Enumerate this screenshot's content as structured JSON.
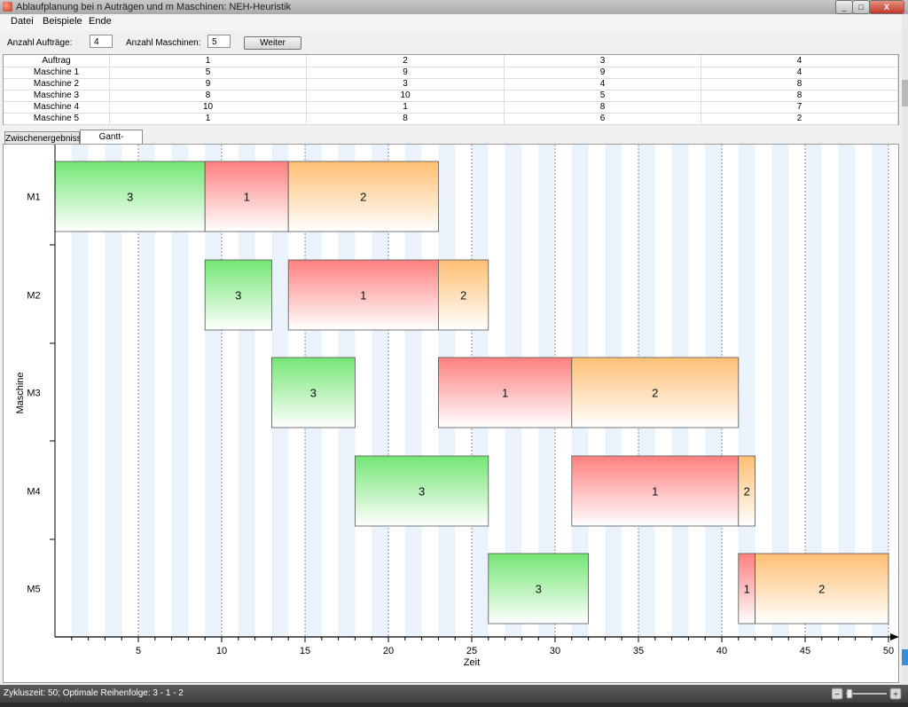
{
  "window": {
    "title": "Ablaufplanung bei n Auträgen und m Maschinen: NEH-Heuristik",
    "btn_min": "_",
    "btn_max": "□",
    "btn_close": "X"
  },
  "menu": {
    "items": [
      "Datei",
      "Beispiele",
      "Ende"
    ]
  },
  "params": {
    "orders_label": "Anzahl Aufträge:",
    "orders_value": "4",
    "machines_label": "Anzahl Maschinen:",
    "machines_value": "5",
    "next_button": "Weiter"
  },
  "table": {
    "headers": [
      "Auftrag",
      "1",
      "2",
      "3",
      "4"
    ],
    "rows": [
      [
        "Maschine 1",
        "5",
        "9",
        "9",
        "4"
      ],
      [
        "Maschine 2",
        "9",
        "3",
        "4",
        "8"
      ],
      [
        "Maschine 3",
        "8",
        "10",
        "5",
        "8"
      ],
      [
        "Maschine 4",
        "10",
        "1",
        "8",
        "7"
      ],
      [
        "Maschine 5",
        "1",
        "8",
        "6",
        "2"
      ]
    ]
  },
  "tabs": [
    "Zwischenergebnisse",
    "Gantt-Diagramm"
  ],
  "active_tab": 1,
  "chart_data": {
    "type": "gantt",
    "xlabel": "Zeit",
    "ylabel": "Maschine",
    "xlim": [
      0,
      50
    ],
    "xticks": [
      5,
      10,
      15,
      20,
      25,
      30,
      35,
      40,
      45,
      50
    ],
    "machines": [
      "M1",
      "M2",
      "M3",
      "M4",
      "M5"
    ],
    "job_colors": {
      "1": "#ff7f7f",
      "2": "#ffbf73",
      "3": "#73e673"
    },
    "tasks": [
      {
        "machine": "M1",
        "job": "3",
        "start": 0,
        "end": 9
      },
      {
        "machine": "M1",
        "job": "1",
        "start": 9,
        "end": 14
      },
      {
        "machine": "M1",
        "job": "2",
        "start": 14,
        "end": 23
      },
      {
        "machine": "M2",
        "job": "3",
        "start": 9,
        "end": 13
      },
      {
        "machine": "M2",
        "job": "1",
        "start": 14,
        "end": 23
      },
      {
        "machine": "M2",
        "job": "2",
        "start": 23,
        "end": 26
      },
      {
        "machine": "M3",
        "job": "3",
        "start": 13,
        "end": 18
      },
      {
        "machine": "M3",
        "job": "1",
        "start": 23,
        "end": 31
      },
      {
        "machine": "M3",
        "job": "2",
        "start": 31,
        "end": 41
      },
      {
        "machine": "M4",
        "job": "3",
        "start": 18,
        "end": 26
      },
      {
        "machine": "M4",
        "job": "1",
        "start": 31,
        "end": 41
      },
      {
        "machine": "M4",
        "job": "2",
        "start": 41,
        "end": 42
      },
      {
        "machine": "M5",
        "job": "3",
        "start": 26,
        "end": 32
      },
      {
        "machine": "M5",
        "job": "1",
        "start": 41,
        "end": 42
      },
      {
        "machine": "M5",
        "job": "2",
        "start": 42,
        "end": 50
      }
    ]
  },
  "status": {
    "text": "Zykluszeit: 50; Optimale Reihenfolge: 3 - 1 - 2"
  }
}
